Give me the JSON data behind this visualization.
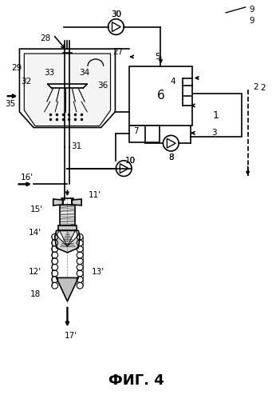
{
  "title": "ФИГ. 4",
  "background_color": "#ffffff",
  "line_color": "#000000",
  "title_fontsize": 13
}
